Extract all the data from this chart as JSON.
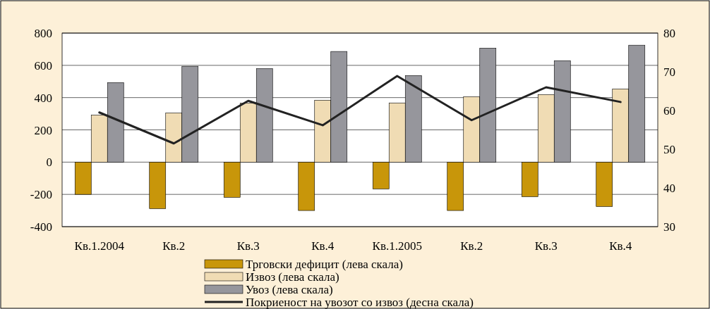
{
  "chart_data": {
    "type": "bar",
    "categories": [
      "Кв.1.2004",
      "Кв.2",
      "Кв.3",
      "Кв.4",
      "Кв.1.2005",
      "Кв.2",
      "Кв.3",
      "Кв.4"
    ],
    "series": [
      {
        "name": "Трговски дефицит (лева скала)",
        "color": "#c8960a",
        "values": [
          -200,
          -288,
          -218,
          -300,
          -166,
          -300,
          -214,
          -275
        ]
      },
      {
        "name": "Извоз (лева скала)",
        "color": "#f0dcb4",
        "values": [
          292,
          305,
          365,
          384,
          367,
          406,
          419,
          454
        ]
      },
      {
        "name": "Увоз (лева скала)",
        "color": "#96969c",
        "values": [
          493,
          594,
          580,
          686,
          537,
          707,
          629,
          725
        ]
      },
      {
        "name": "Покриеност на увозот со извоз (десна скала)",
        "color": "#222222",
        "type": "line",
        "axis": "y2",
        "values": [
          59.5,
          51.5,
          62.5,
          56.2,
          68.9,
          57.5,
          66,
          62.2
        ]
      }
    ],
    "ylim": [
      -400,
      800
    ],
    "yticks": [
      -400,
      -200,
      0,
      200,
      400,
      600,
      800
    ],
    "y2lim": [
      30,
      80
    ],
    "y2ticks": [
      30,
      40,
      50,
      60,
      70,
      80
    ],
    "grid": "y",
    "legend": "bottom"
  }
}
